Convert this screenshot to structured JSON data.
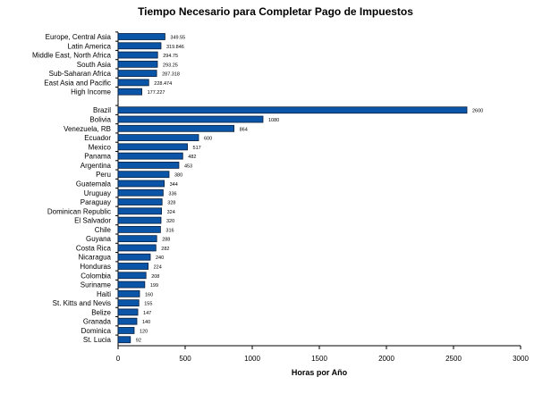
{
  "chart_data": {
    "type": "bar",
    "orientation": "horizontal",
    "title": "Tiempo Necesario para Completar Pago de Impuestos",
    "xlabel": "Horas por Año",
    "ylabel": "",
    "xlim": [
      0,
      3000
    ],
    "xticks": [
      "0",
      "500",
      "1000",
      "1500",
      "2000",
      "2500",
      "3000"
    ],
    "grid": false,
    "bar_color": "#0b55a8",
    "groups": [
      {
        "categories": [
          "Europe, Central Asia",
          "Latin America",
          "Middle East, North Africa",
          "South Asia",
          "Sub-Saharan  Africa",
          "East Asia and Pacific",
          "High Income"
        ],
        "values": [
          349.55,
          319.846,
          294.75,
          293.25,
          287.318,
          228.474,
          177.227
        ],
        "labels": [
          "349.55",
          "319.846",
          "294.75",
          "293.25",
          "287.318",
          "228.474",
          "177.227"
        ]
      },
      {
        "categories": [
          "Brazil",
          "Bolivia",
          "Venezuela,  RB",
          "Ecuador",
          "Mexico",
          "Panama",
          "Argentina",
          "Peru",
          "Guatemala",
          "Uruguay",
          "Paraguay",
          "Dominican Republic",
          "El Salvador",
          "Chile",
          "Guyana",
          "Costa Rica",
          "Nicaragua",
          "Honduras",
          "Colombia",
          "Suriname",
          "Haiti",
          "St. Kitts and Nevis",
          "Belize",
          "Granada",
          "Dominica",
          "St. Lucia"
        ],
        "values": [
          2600,
          1080,
          864,
          600,
          517,
          482,
          453,
          380,
          344,
          336,
          328,
          324,
          320,
          316,
          288,
          282,
          240,
          224,
          208,
          199,
          160,
          155,
          147,
          140,
          120,
          92
        ],
        "labels": [
          "2600",
          "1080",
          "864",
          "600",
          "517",
          "482",
          "453",
          "380",
          "344",
          "336",
          "328",
          "324",
          "320",
          "316",
          "288",
          "282",
          "240",
          "224",
          "208",
          "199",
          "160",
          "155",
          "147",
          "140",
          "120",
          "92"
        ]
      }
    ]
  }
}
